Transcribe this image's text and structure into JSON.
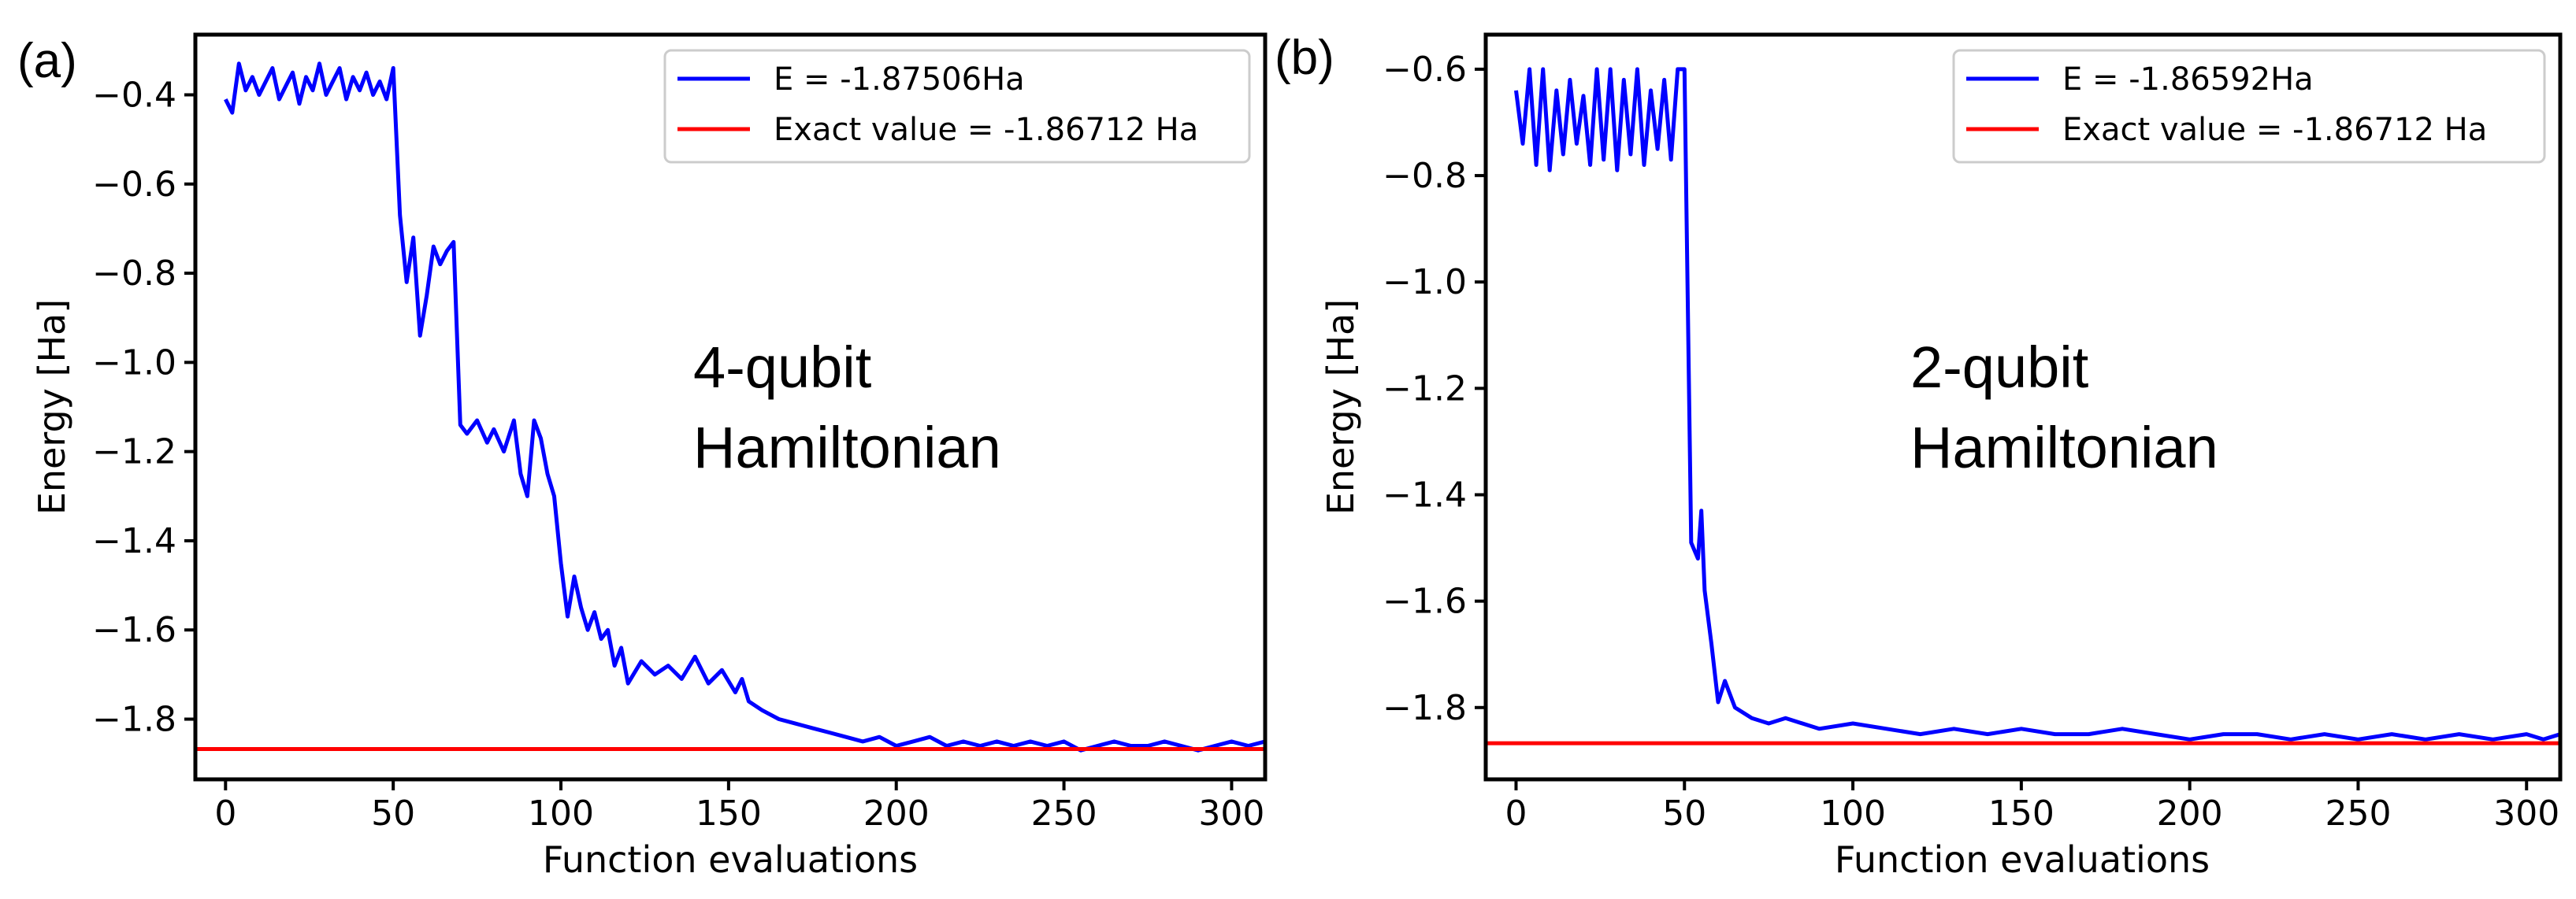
{
  "chart_data": [
    {
      "panel_label": "(a)",
      "type": "line",
      "xlabel": "Function evaluations",
      "ylabel": "Energy [Ha]",
      "xlim": [
        -9,
        310
      ],
      "ylim": [
        -1.935,
        -0.265
      ],
      "xticks": [
        0,
        50,
        100,
        150,
        200,
        250,
        300
      ],
      "xtick_labels": [
        "0",
        "50",
        "100",
        "150",
        "200",
        "250",
        "300"
      ],
      "yticks": [
        -0.4,
        -0.6,
        -0.8,
        -1.0,
        -1.2,
        -1.4,
        -1.6,
        -1.8
      ],
      "ytick_labels": [
        "−0.4",
        "−0.6",
        "−0.8",
        "−1.0",
        "−1.2",
        "−1.4",
        "−1.6",
        "−1.8"
      ],
      "annotation": [
        "4-qubit",
        "Hamiltonian"
      ],
      "legend_position": "top-right",
      "series": [
        {
          "name": "E = -1.87506Ha",
          "color": "#0000ff",
          "x": [
            0,
            2,
            4,
            6,
            8,
            10,
            12,
            14,
            16,
            18,
            20,
            22,
            24,
            26,
            28,
            30,
            32,
            34,
            36,
            38,
            40,
            42,
            44,
            46,
            48,
            50,
            52,
            54,
            56,
            58,
            60,
            62,
            64,
            66,
            68,
            70,
            72,
            75,
            78,
            80,
            83,
            86,
            88,
            90,
            92,
            94,
            96,
            98,
            100,
            102,
            104,
            106,
            108,
            110,
            112,
            114,
            116,
            118,
            120,
            124,
            128,
            132,
            136,
            140,
            144,
            148,
            152,
            154,
            156,
            160,
            165,
            170,
            175,
            180,
            185,
            190,
            195,
            200,
            205,
            210,
            215,
            220,
            225,
            230,
            235,
            240,
            245,
            250,
            255,
            260,
            265,
            270,
            275,
            280,
            285,
            290,
            295,
            300,
            305,
            310
          ],
          "values": [
            -0.41,
            -0.44,
            -0.33,
            -0.39,
            -0.36,
            -0.4,
            -0.37,
            -0.34,
            -0.41,
            -0.38,
            -0.35,
            -0.42,
            -0.36,
            -0.39,
            -0.33,
            -0.4,
            -0.37,
            -0.34,
            -0.41,
            -0.36,
            -0.39,
            -0.35,
            -0.4,
            -0.37,
            -0.41,
            -0.34,
            -0.67,
            -0.82,
            -0.72,
            -0.94,
            -0.85,
            -0.74,
            -0.78,
            -0.75,
            -0.73,
            -1.14,
            -1.16,
            -1.13,
            -1.18,
            -1.15,
            -1.2,
            -1.13,
            -1.25,
            -1.3,
            -1.13,
            -1.17,
            -1.25,
            -1.3,
            -1.45,
            -1.57,
            -1.48,
            -1.55,
            -1.6,
            -1.56,
            -1.62,
            -1.6,
            -1.68,
            -1.64,
            -1.72,
            -1.67,
            -1.7,
            -1.68,
            -1.71,
            -1.66,
            -1.72,
            -1.69,
            -1.74,
            -1.71,
            -1.76,
            -1.78,
            -1.8,
            -1.81,
            -1.82,
            -1.83,
            -1.84,
            -1.85,
            -1.84,
            -1.86,
            -1.85,
            -1.84,
            -1.86,
            -1.85,
            -1.86,
            -1.85,
            -1.86,
            -1.85,
            -1.86,
            -1.85,
            -1.87,
            -1.86,
            -1.85,
            -1.86,
            -1.86,
            -1.85,
            -1.86,
            -1.87,
            -1.86,
            -1.85,
            -1.86,
            -1.85
          ]
        },
        {
          "name": "Exact value = -1.86712 Ha",
          "color": "#ff0000",
          "x": [
            -9,
            310
          ],
          "values": [
            -1.86712,
            -1.86712
          ]
        }
      ]
    },
    {
      "panel_label": "(b)",
      "type": "line",
      "xlabel": "Function evaluations",
      "ylabel": "Energy [Ha]",
      "xlim": [
        -9,
        310
      ],
      "ylim": [
        -1.935,
        -0.535
      ],
      "xticks": [
        0,
        50,
        100,
        150,
        200,
        250,
        300
      ],
      "xtick_labels": [
        "0",
        "50",
        "100",
        "150",
        "200",
        "250",
        "300"
      ],
      "yticks": [
        -0.6,
        -0.8,
        -1.0,
        -1.2,
        -1.4,
        -1.6,
        -1.8
      ],
      "ytick_labels": [
        "−0.6",
        "−0.8",
        "−1.0",
        "−1.2",
        "−1.4",
        "−1.6",
        "−1.8"
      ],
      "annotation": [
        "2-qubit",
        "Hamiltonian"
      ],
      "legend_position": "top-right",
      "series": [
        {
          "name": "E = -1.86592Ha",
          "color": "#0000ff",
          "x": [
            0,
            2,
            4,
            6,
            8,
            10,
            12,
            14,
            16,
            18,
            20,
            22,
            24,
            26,
            28,
            30,
            32,
            34,
            36,
            38,
            40,
            42,
            44,
            46,
            48,
            50,
            52,
            54,
            55,
            56,
            58,
            60,
            62,
            65,
            70,
            75,
            80,
            90,
            100,
            110,
            120,
            130,
            140,
            150,
            160,
            170,
            180,
            190,
            200,
            210,
            220,
            230,
            240,
            250,
            260,
            270,
            280,
            290,
            300,
            305,
            310
          ],
          "values": [
            -0.64,
            -0.74,
            -0.6,
            -0.78,
            -0.6,
            -0.79,
            -0.64,
            -0.76,
            -0.62,
            -0.74,
            -0.65,
            -0.78,
            -0.6,
            -0.77,
            -0.6,
            -0.79,
            -0.62,
            -0.76,
            -0.6,
            -0.78,
            -0.64,
            -0.75,
            -0.62,
            -0.77,
            -0.6,
            -0.6,
            -1.49,
            -1.52,
            -1.43,
            -1.58,
            -1.68,
            -1.79,
            -1.75,
            -1.8,
            -1.82,
            -1.83,
            -1.82,
            -1.84,
            -1.83,
            -1.84,
            -1.85,
            -1.84,
            -1.85,
            -1.84,
            -1.85,
            -1.85,
            -1.84,
            -1.85,
            -1.86,
            -1.85,
            -1.85,
            -1.86,
            -1.85,
            -1.86,
            -1.85,
            -1.86,
            -1.85,
            -1.86,
            -1.85,
            -1.86,
            -1.85
          ]
        },
        {
          "name": "Exact value = -1.86712 Ha",
          "color": "#ff0000",
          "x": [
            -9,
            310
          ],
          "values": [
            -1.86712,
            -1.86712
          ]
        }
      ]
    }
  ]
}
